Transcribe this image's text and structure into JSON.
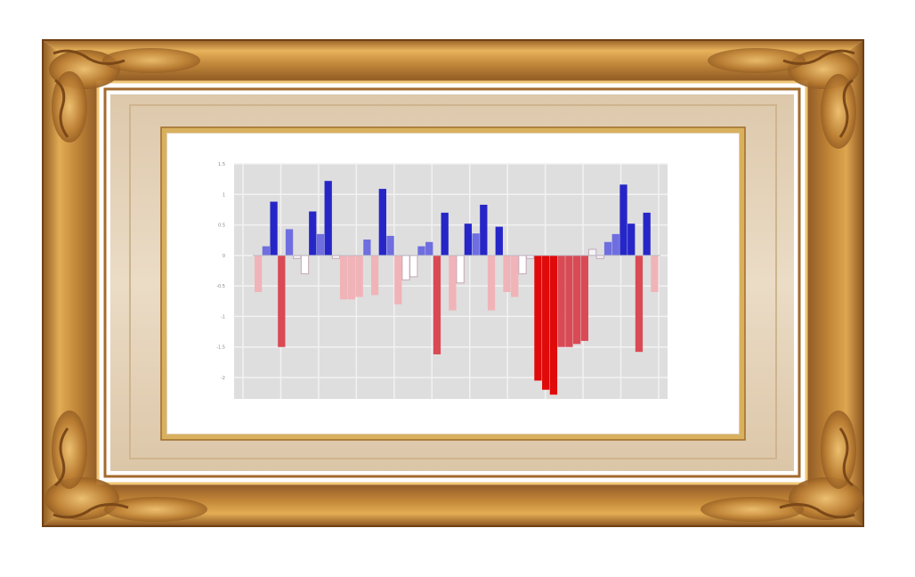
{
  "colors": {
    "background": "#ffffff",
    "frame_light": "#e0aa52",
    "frame_mid": "#c4873a",
    "frame_dark": "#8f5a24",
    "mat": "#e6d5bd",
    "inner_gold": "#d9b15e",
    "picture_paper": "#ffffff",
    "plot_background": "#dedede",
    "grid": "#f2f2f2",
    "axis_tick_text": "#888888",
    "positive_strong": "#2626c8",
    "positive_light": "#6e6ee0",
    "negative_strong": "#e00a0a",
    "negative_medium": "#d94a55",
    "negative_light": "#f0b4b8",
    "neutral_outline": "#c6a8b6"
  },
  "chart_data": {
    "type": "bar",
    "title": "",
    "xlabel": "",
    "ylabel": "",
    "ylim": [
      -2.35,
      1.5
    ],
    "yticks": [
      1.5,
      1,
      0.5,
      0,
      -0.5,
      -1,
      -1.5,
      -2
    ],
    "ytick_labels": [
      "1.5",
      "1",
      "0.5",
      "0",
      "-0.5",
      "-1",
      "-1.5",
      "-2"
    ],
    "grid": true,
    "legend": "none",
    "values": [
      -0.6,
      0.15,
      0.88,
      -1.5,
      0.43,
      -0.05,
      -0.3,
      0.72,
      0.35,
      1.22,
      -0.05,
      -0.72,
      -0.72,
      -0.68,
      0.26,
      -0.65,
      1.09,
      0.32,
      -0.8,
      -0.4,
      -0.35,
      0.15,
      0.22,
      -1.62,
      0.7,
      -0.9,
      -0.45,
      0.52,
      0.36,
      0.83,
      -0.9,
      0.47,
      -0.6,
      -0.68,
      -0.3,
      -0.05,
      -2.05,
      -2.2,
      -2.28,
      -1.5,
      -1.5,
      -1.45,
      -1.4,
      0.1,
      -0.05,
      0.22,
      0.35,
      1.16,
      0.52,
      -1.58,
      0.7,
      -0.6
    ]
  }
}
